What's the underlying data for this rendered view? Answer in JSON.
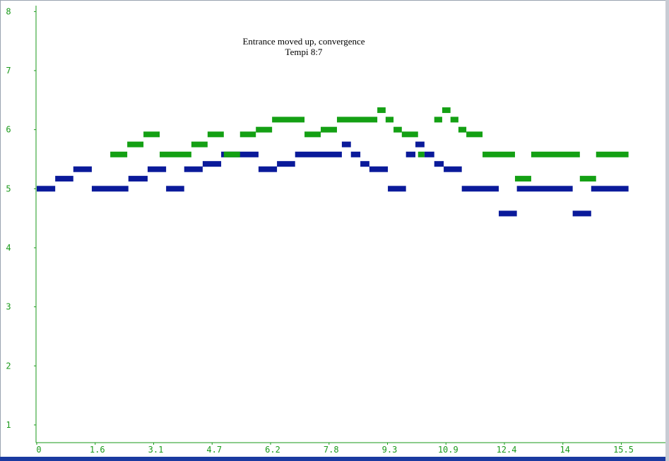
{
  "chart_data": {
    "type": "note-roll",
    "title": "Entrance moved up, convergence",
    "subtitle": "Tempi 8:7",
    "xlim": [
      0,
      16.67
    ],
    "ylim": [
      0.7,
      8.1
    ],
    "xticks": [
      0,
      {
        "value": 1.55,
        "label": "1.6"
      },
      3.1,
      {
        "value": 4.65,
        "label": "4.7"
      },
      6.2,
      {
        "value": 7.75,
        "label": "7.8"
      },
      9.3,
      {
        "value": 10.85,
        "label": "10.9"
      },
      12.4,
      {
        "value": 13.95,
        "label": "14"
      },
      15.5
    ],
    "yticks": [
      1,
      2,
      3,
      4,
      5,
      6,
      7,
      8
    ],
    "series": [
      {
        "color": "#0a1a9a",
        "start": [
          0,
          0.49,
          0.97,
          1.46,
          2.43,
          2.94,
          3.43,
          3.91,
          4.4,
          4.89,
          5.88,
          6.37,
          6.85,
          8.09,
          8.33,
          8.58,
          8.82,
          9.31,
          9.79,
          10.04,
          10.28,
          10.54,
          10.79,
          11.27,
          12.25,
          12.73,
          14.21,
          14.7
        ],
        "end": [
          0.49,
          0.97,
          1.46,
          2.43,
          2.94,
          3.43,
          3.91,
          4.4,
          4.89,
          5.88,
          6.37,
          6.85,
          8.09,
          8.33,
          8.58,
          8.82,
          9.31,
          9.79,
          10.04,
          10.28,
          10.54,
          10.79,
          11.27,
          12.25,
          12.73,
          14.21,
          14.7,
          15.69
        ],
        "values": [
          5.0,
          5.17,
          5.33,
          5.0,
          5.17,
          5.33,
          5.0,
          5.33,
          5.42,
          5.58,
          5.33,
          5.42,
          5.58,
          5.75,
          5.58,
          5.42,
          5.33,
          5.0,
          5.58,
          5.75,
          5.58,
          5.42,
          5.33,
          5.0,
          4.58,
          5.0,
          4.58,
          5.0
        ]
      },
      {
        "color": "#14a014",
        "start": [
          1.95,
          2.4,
          2.83,
          3.26,
          4.1,
          4.53,
          4.96,
          5.39,
          5.81,
          6.24,
          7.1,
          7.53,
          7.96,
          9.03,
          9.25,
          9.46,
          9.68,
          10.11,
          10.54,
          10.75,
          10.97,
          11.18,
          11.39,
          11.82,
          12.68,
          13.11,
          14.4,
          14.83
        ],
        "end": [
          2.4,
          2.83,
          3.26,
          4.1,
          4.53,
          4.96,
          5.39,
          5.81,
          6.24,
          7.1,
          7.53,
          7.96,
          9.03,
          9.25,
          9.46,
          9.68,
          10.11,
          10.28,
          10.75,
          10.97,
          11.18,
          11.39,
          11.82,
          12.68,
          13.11,
          14.4,
          14.83,
          15.69
        ],
        "values": [
          5.58,
          5.75,
          5.92,
          5.58,
          5.75,
          5.92,
          5.58,
          5.92,
          6.0,
          6.17,
          5.92,
          6.0,
          6.17,
          6.33,
          6.17,
          6.0,
          5.92,
          5.58,
          6.17,
          6.33,
          6.17,
          6.0,
          5.92,
          5.58,
          5.17,
          5.58,
          5.17,
          5.58
        ]
      }
    ]
  }
}
